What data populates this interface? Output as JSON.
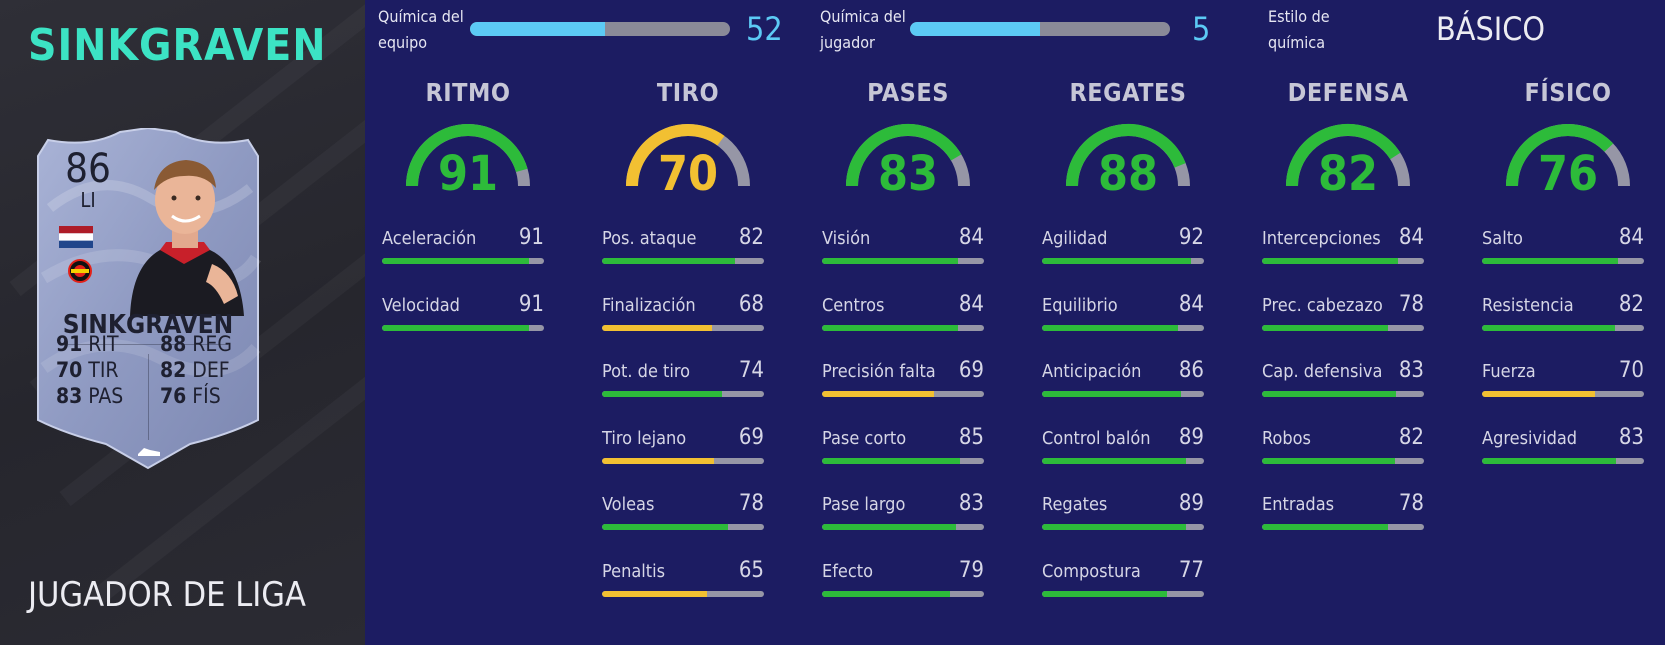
{
  "player": {
    "name": "SINKGRAVEN",
    "card_type": "JUGADOR DE LIGA",
    "rating": "86",
    "position": "LI",
    "card_name": "SINKGRAVEN",
    "card_stats": [
      {
        "value": "91",
        "label": "RIT"
      },
      {
        "value": "70",
        "label": "TIR"
      },
      {
        "value": "83",
        "label": "PAS"
      },
      {
        "value": "88",
        "label": "REG"
      },
      {
        "value": "82",
        "label": "DEF"
      },
      {
        "value": "76",
        "label": "FÍS"
      }
    ]
  },
  "chemistry": {
    "team_label_1": "Química del",
    "team_label_2": "equipo",
    "team_value": "52",
    "team_fill": 0.52,
    "player_label_1": "Química del",
    "player_label_2": "jugador",
    "player_value": "5",
    "player_fill": 0.5,
    "style_label_1": "Estilo de",
    "style_label_2": "química",
    "style_value": "BÁSICO"
  },
  "colors": {
    "green": "#2dbb3a",
    "yellow": "#f2c032",
    "track": "#9696a6",
    "cyan": "#5ccaf5",
    "teal": "#3ce3c4"
  },
  "categories": [
    {
      "title": "RITMO",
      "value": "91",
      "level": "green",
      "attributes": [
        {
          "label": "Aceleración",
          "value": "91",
          "level": "green"
        },
        {
          "label": "Velocidad",
          "value": "91",
          "level": "green"
        }
      ]
    },
    {
      "title": "TIRO",
      "value": "70",
      "level": "yellow",
      "attributes": [
        {
          "label": "Pos. ataque",
          "value": "82",
          "level": "green"
        },
        {
          "label": "Finalización",
          "value": "68",
          "level": "yellow"
        },
        {
          "label": "Pot. de tiro",
          "value": "74",
          "level": "green"
        },
        {
          "label": "Tiro lejano",
          "value": "69",
          "level": "yellow"
        },
        {
          "label": "Voleas",
          "value": "78",
          "level": "green"
        },
        {
          "label": "Penaltis",
          "value": "65",
          "level": "yellow"
        }
      ]
    },
    {
      "title": "PASES",
      "value": "83",
      "level": "green",
      "attributes": [
        {
          "label": "Visión",
          "value": "84",
          "level": "green"
        },
        {
          "label": "Centros",
          "value": "84",
          "level": "green"
        },
        {
          "label": "Precisión falta",
          "value": "69",
          "level": "yellow"
        },
        {
          "label": "Pase corto",
          "value": "85",
          "level": "green"
        },
        {
          "label": "Pase largo",
          "value": "83",
          "level": "green"
        },
        {
          "label": "Efecto",
          "value": "79",
          "level": "green"
        }
      ]
    },
    {
      "title": "REGATES",
      "value": "88",
      "level": "green",
      "attributes": [
        {
          "label": "Agilidad",
          "value": "92",
          "level": "green"
        },
        {
          "label": "Equilibrio",
          "value": "84",
          "level": "green"
        },
        {
          "label": "Anticipación",
          "value": "86",
          "level": "green"
        },
        {
          "label": "Control balón",
          "value": "89",
          "level": "green"
        },
        {
          "label": "Regates",
          "value": "89",
          "level": "green"
        },
        {
          "label": "Compostura",
          "value": "77",
          "level": "green"
        }
      ]
    },
    {
      "title": "DEFENSA",
      "value": "82",
      "level": "green",
      "attributes": [
        {
          "label": "Intercepciones",
          "value": "84",
          "level": "green"
        },
        {
          "label": "Prec. cabezazo",
          "value": "78",
          "level": "green"
        },
        {
          "label": "Cap. defensiva",
          "value": "83",
          "level": "green"
        },
        {
          "label": "Robos",
          "value": "82",
          "level": "green"
        },
        {
          "label": "Entradas",
          "value": "78",
          "level": "green"
        }
      ]
    },
    {
      "title": "FÍSICO",
      "value": "76",
      "level": "green",
      "attributes": [
        {
          "label": "Salto",
          "value": "84",
          "level": "green"
        },
        {
          "label": "Resistencia",
          "value": "82",
          "level": "green"
        },
        {
          "label": "Fuerza",
          "value": "70",
          "level": "yellow"
        },
        {
          "label": "Agresividad",
          "value": "83",
          "level": "green"
        }
      ]
    }
  ]
}
